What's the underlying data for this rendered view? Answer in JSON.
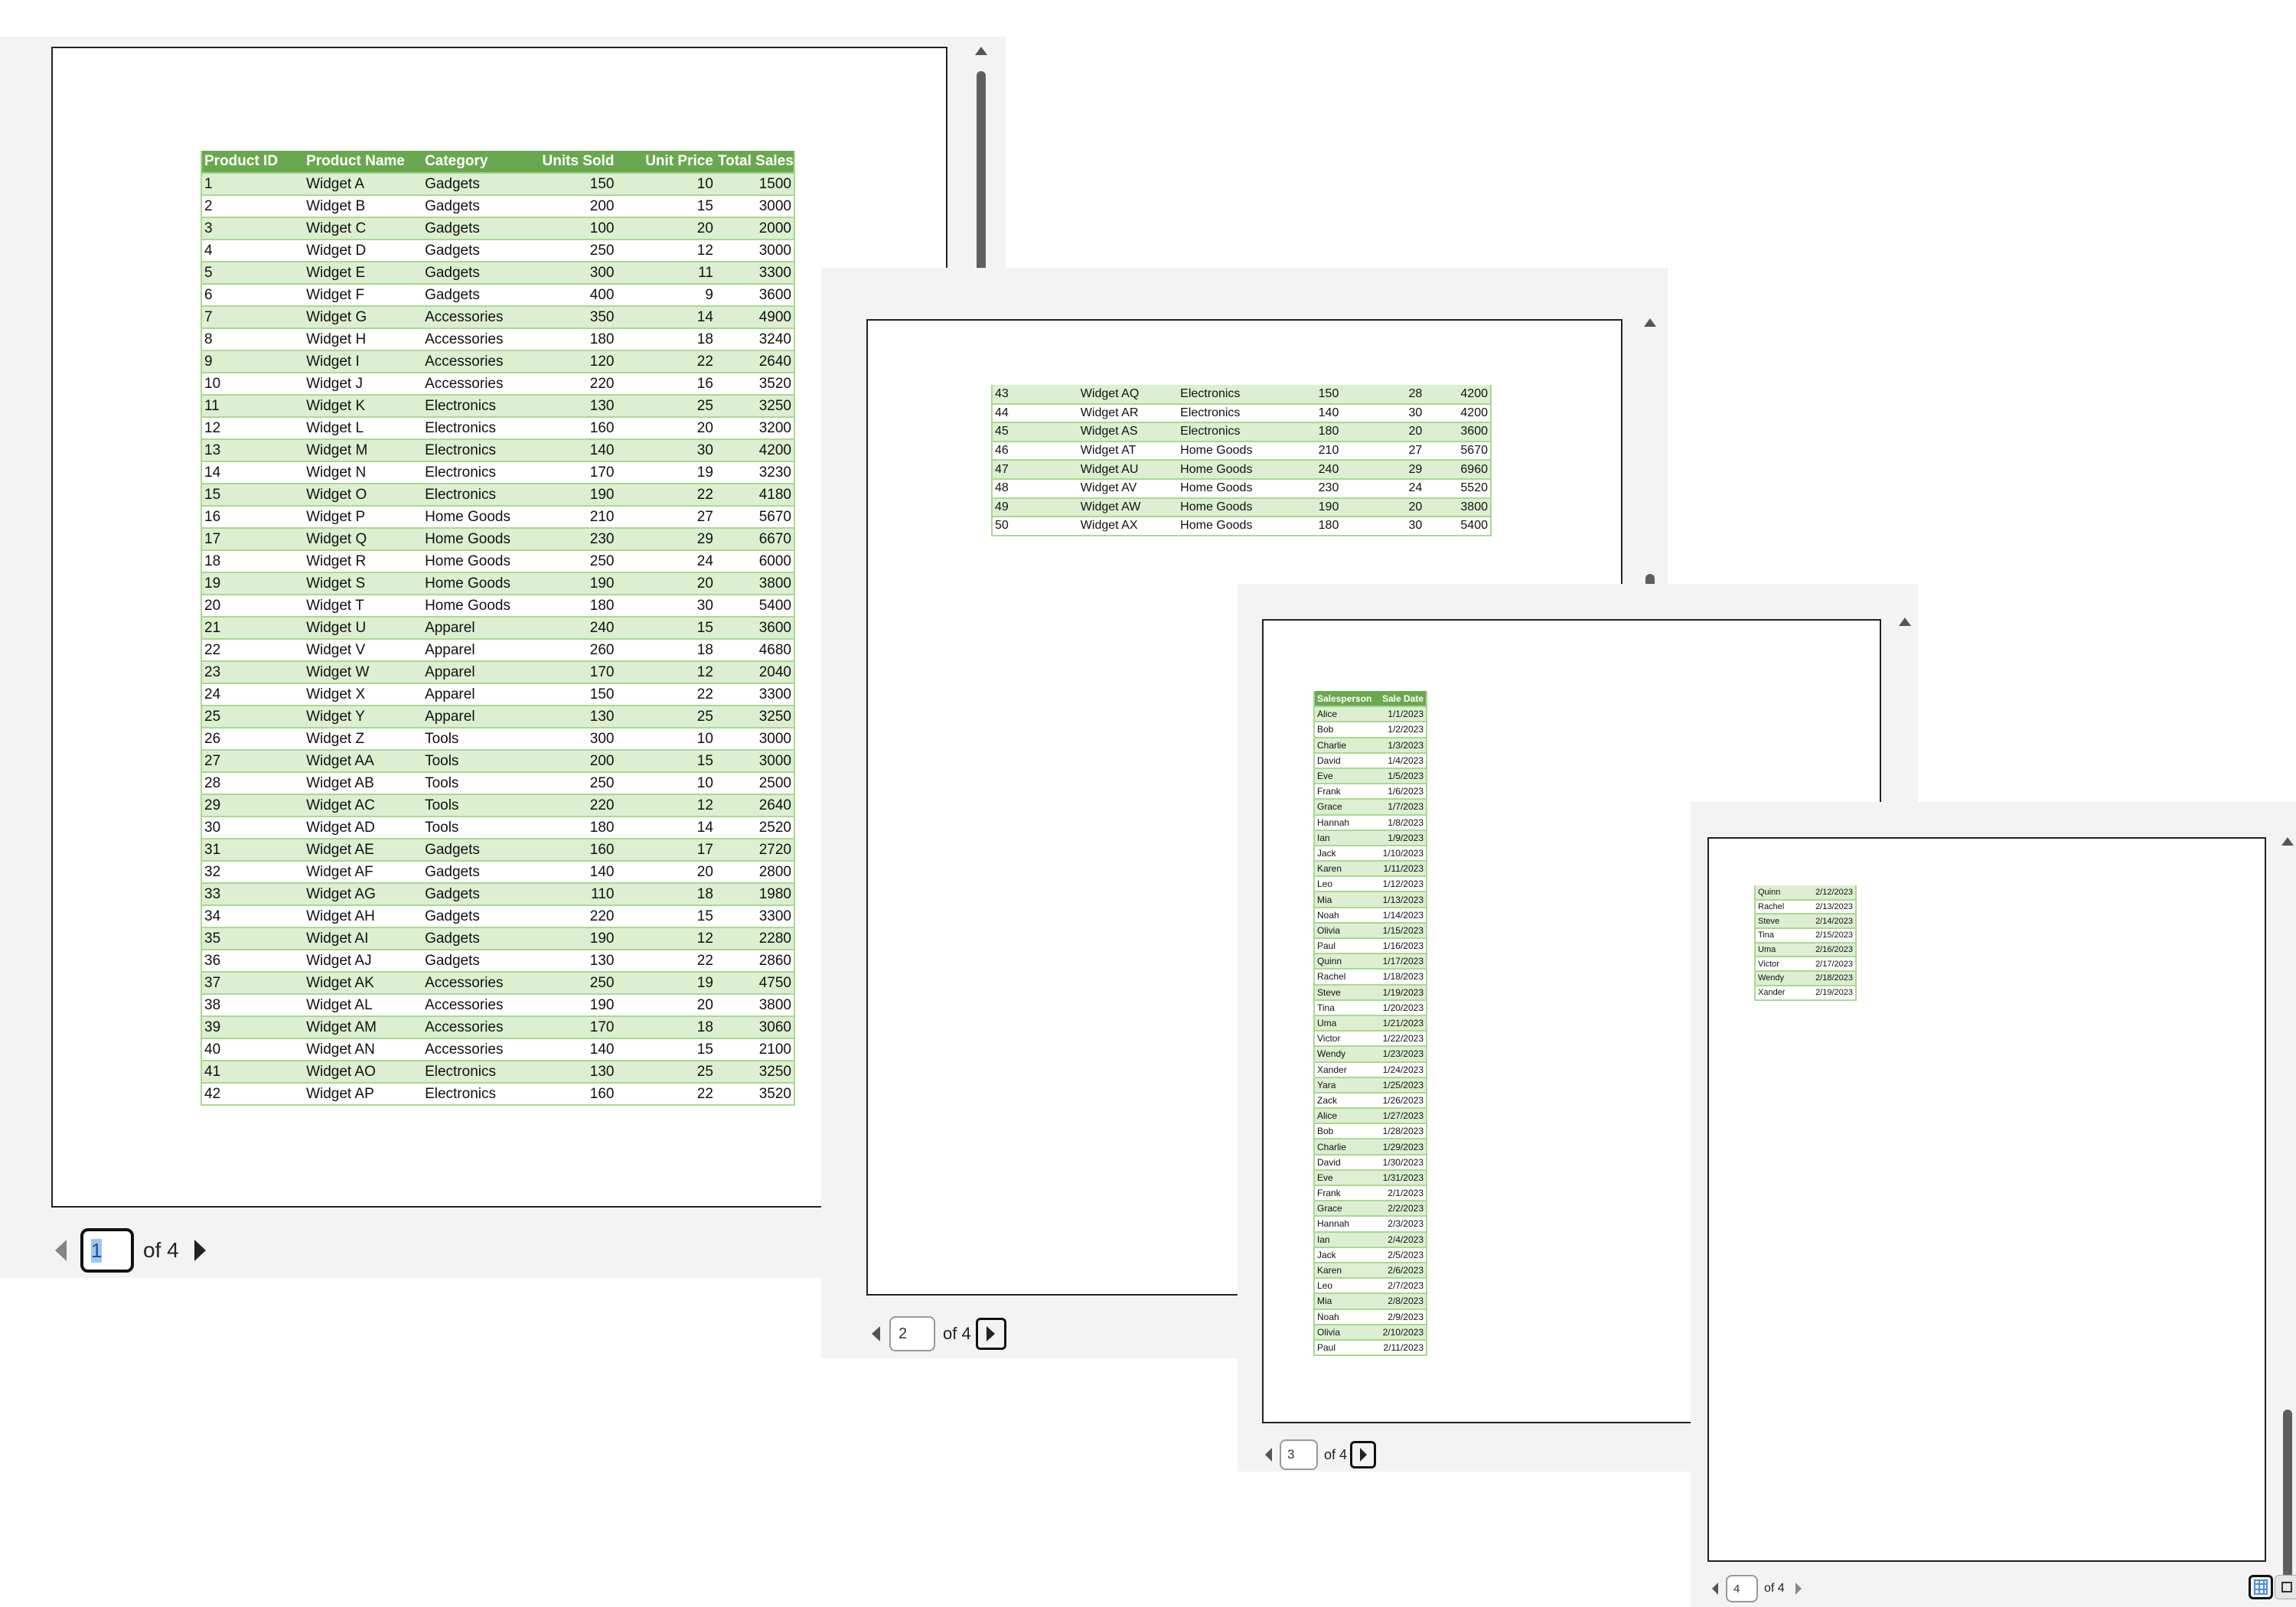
{
  "product_columns": [
    "Product ID",
    "Product Name",
    "Category",
    "Units Sold",
    "Unit Price",
    "Total Sales"
  ],
  "sales_columns": [
    "Salesperson",
    "Sale Date"
  ],
  "windows": [
    {
      "page": "1",
      "of_label": "of 4",
      "rows": [
        [
          "1",
          "Widget A",
          "Gadgets",
          "150",
          "10",
          "1500"
        ],
        [
          "2",
          "Widget B",
          "Gadgets",
          "200",
          "15",
          "3000"
        ],
        [
          "3",
          "Widget C",
          "Gadgets",
          "100",
          "20",
          "2000"
        ],
        [
          "4",
          "Widget D",
          "Gadgets",
          "250",
          "12",
          "3000"
        ],
        [
          "5",
          "Widget E",
          "Gadgets",
          "300",
          "11",
          "3300"
        ],
        [
          "6",
          "Widget F",
          "Gadgets",
          "400",
          "9",
          "3600"
        ],
        [
          "7",
          "Widget G",
          "Accessories",
          "350",
          "14",
          "4900"
        ],
        [
          "8",
          "Widget H",
          "Accessories",
          "180",
          "18",
          "3240"
        ],
        [
          "9",
          "Widget I",
          "Accessories",
          "120",
          "22",
          "2640"
        ],
        [
          "10",
          "Widget J",
          "Accessories",
          "220",
          "16",
          "3520"
        ],
        [
          "11",
          "Widget K",
          "Electronics",
          "130",
          "25",
          "3250"
        ],
        [
          "12",
          "Widget L",
          "Electronics",
          "160",
          "20",
          "3200"
        ],
        [
          "13",
          "Widget M",
          "Electronics",
          "140",
          "30",
          "4200"
        ],
        [
          "14",
          "Widget N",
          "Electronics",
          "170",
          "19",
          "3230"
        ],
        [
          "15",
          "Widget O",
          "Electronics",
          "190",
          "22",
          "4180"
        ],
        [
          "16",
          "Widget P",
          "Home Goods",
          "210",
          "27",
          "5670"
        ],
        [
          "17",
          "Widget Q",
          "Home Goods",
          "230",
          "29",
          "6670"
        ],
        [
          "18",
          "Widget R",
          "Home Goods",
          "250",
          "24",
          "6000"
        ],
        [
          "19",
          "Widget S",
          "Home Goods",
          "190",
          "20",
          "3800"
        ],
        [
          "20",
          "Widget T",
          "Home Goods",
          "180",
          "30",
          "5400"
        ],
        [
          "21",
          "Widget U",
          "Apparel",
          "240",
          "15",
          "3600"
        ],
        [
          "22",
          "Widget V",
          "Apparel",
          "260",
          "18",
          "4680"
        ],
        [
          "23",
          "Widget W",
          "Apparel",
          "170",
          "12",
          "2040"
        ],
        [
          "24",
          "Widget X",
          "Apparel",
          "150",
          "22",
          "3300"
        ],
        [
          "25",
          "Widget Y",
          "Apparel",
          "130",
          "25",
          "3250"
        ],
        [
          "26",
          "Widget Z",
          "Tools",
          "300",
          "10",
          "3000"
        ],
        [
          "27",
          "Widget AA",
          "Tools",
          "200",
          "15",
          "3000"
        ],
        [
          "28",
          "Widget AB",
          "Tools",
          "250",
          "10",
          "2500"
        ],
        [
          "29",
          "Widget AC",
          "Tools",
          "220",
          "12",
          "2640"
        ],
        [
          "30",
          "Widget AD",
          "Tools",
          "180",
          "14",
          "2520"
        ],
        [
          "31",
          "Widget AE",
          "Gadgets",
          "160",
          "17",
          "2720"
        ],
        [
          "32",
          "Widget AF",
          "Gadgets",
          "140",
          "20",
          "2800"
        ],
        [
          "33",
          "Widget AG",
          "Gadgets",
          "110",
          "18",
          "1980"
        ],
        [
          "34",
          "Widget AH",
          "Gadgets",
          "220",
          "15",
          "3300"
        ],
        [
          "35",
          "Widget AI",
          "Gadgets",
          "190",
          "12",
          "2280"
        ],
        [
          "36",
          "Widget AJ",
          "Gadgets",
          "130",
          "22",
          "2860"
        ],
        [
          "37",
          "Widget AK",
          "Accessories",
          "250",
          "19",
          "4750"
        ],
        [
          "38",
          "Widget AL",
          "Accessories",
          "190",
          "20",
          "3800"
        ],
        [
          "39",
          "Widget AM",
          "Accessories",
          "170",
          "18",
          "3060"
        ],
        [
          "40",
          "Widget AN",
          "Accessories",
          "140",
          "15",
          "2100"
        ],
        [
          "41",
          "Widget AO",
          "Electronics",
          "130",
          "25",
          "3250"
        ],
        [
          "42",
          "Widget AP",
          "Electronics",
          "160",
          "22",
          "3520"
        ]
      ]
    },
    {
      "page": "2",
      "of_label": "of 4",
      "rows": [
        [
          "43",
          "Widget AQ",
          "Electronics",
          "150",
          "28",
          "4200"
        ],
        [
          "44",
          "Widget AR",
          "Electronics",
          "140",
          "30",
          "4200"
        ],
        [
          "45",
          "Widget AS",
          "Electronics",
          "180",
          "20",
          "3600"
        ],
        [
          "46",
          "Widget AT",
          "Home Goods",
          "210",
          "27",
          "5670"
        ],
        [
          "47",
          "Widget AU",
          "Home Goods",
          "240",
          "29",
          "6960"
        ],
        [
          "48",
          "Widget AV",
          "Home Goods",
          "230",
          "24",
          "5520"
        ],
        [
          "49",
          "Widget AW",
          "Home Goods",
          "190",
          "20",
          "3800"
        ],
        [
          "50",
          "Widget AX",
          "Home Goods",
          "180",
          "30",
          "5400"
        ]
      ]
    },
    {
      "page": "3",
      "of_label": "of 4",
      "rows": [
        [
          "Alice",
          "1/1/2023"
        ],
        [
          "Bob",
          "1/2/2023"
        ],
        [
          "Charlie",
          "1/3/2023"
        ],
        [
          "David",
          "1/4/2023"
        ],
        [
          "Eve",
          "1/5/2023"
        ],
        [
          "Frank",
          "1/6/2023"
        ],
        [
          "Grace",
          "1/7/2023"
        ],
        [
          "Hannah",
          "1/8/2023"
        ],
        [
          "Ian",
          "1/9/2023"
        ],
        [
          "Jack",
          "1/10/2023"
        ],
        [
          "Karen",
          "1/11/2023"
        ],
        [
          "Leo",
          "1/12/2023"
        ],
        [
          "Mia",
          "1/13/2023"
        ],
        [
          "Noah",
          "1/14/2023"
        ],
        [
          "Olivia",
          "1/15/2023"
        ],
        [
          "Paul",
          "1/16/2023"
        ],
        [
          "Quinn",
          "1/17/2023"
        ],
        [
          "Rachel",
          "1/18/2023"
        ],
        [
          "Steve",
          "1/19/2023"
        ],
        [
          "Tina",
          "1/20/2023"
        ],
        [
          "Uma",
          "1/21/2023"
        ],
        [
          "Victor",
          "1/22/2023"
        ],
        [
          "Wendy",
          "1/23/2023"
        ],
        [
          "Xander",
          "1/24/2023"
        ],
        [
          "Yara",
          "1/25/2023"
        ],
        [
          "Zack",
          "1/26/2023"
        ],
        [
          "Alice",
          "1/27/2023"
        ],
        [
          "Bob",
          "1/28/2023"
        ],
        [
          "Charlie",
          "1/29/2023"
        ],
        [
          "David",
          "1/30/2023"
        ],
        [
          "Eve",
          "1/31/2023"
        ],
        [
          "Frank",
          "2/1/2023"
        ],
        [
          "Grace",
          "2/2/2023"
        ],
        [
          "Hannah",
          "2/3/2023"
        ],
        [
          "Ian",
          "2/4/2023"
        ],
        [
          "Jack",
          "2/5/2023"
        ],
        [
          "Karen",
          "2/6/2023"
        ],
        [
          "Leo",
          "2/7/2023"
        ],
        [
          "Mia",
          "2/8/2023"
        ],
        [
          "Noah",
          "2/9/2023"
        ],
        [
          "Olivia",
          "2/10/2023"
        ],
        [
          "Paul",
          "2/11/2023"
        ]
      ]
    },
    {
      "page": "4",
      "of_label": "of 4",
      "rows": [
        [
          "Quinn",
          "2/12/2023"
        ],
        [
          "Rachel",
          "2/13/2023"
        ],
        [
          "Steve",
          "2/14/2023"
        ],
        [
          "Tina",
          "2/15/2023"
        ],
        [
          "Uma",
          "2/16/2023"
        ],
        [
          "Victor",
          "2/17/2023"
        ],
        [
          "Wendy",
          "2/18/2023"
        ],
        [
          "Xander",
          "2/19/2023"
        ]
      ]
    }
  ],
  "colors": {
    "header_green": "#6aa84f",
    "band_green": "#dcefd1",
    "accent_blue": "#4a90d9"
  },
  "icons": [
    "chevron-left-icon",
    "chevron-right-icon",
    "scroll-up-icon",
    "scroll-down-icon",
    "page-layout-icon",
    "fit-page-icon"
  ]
}
